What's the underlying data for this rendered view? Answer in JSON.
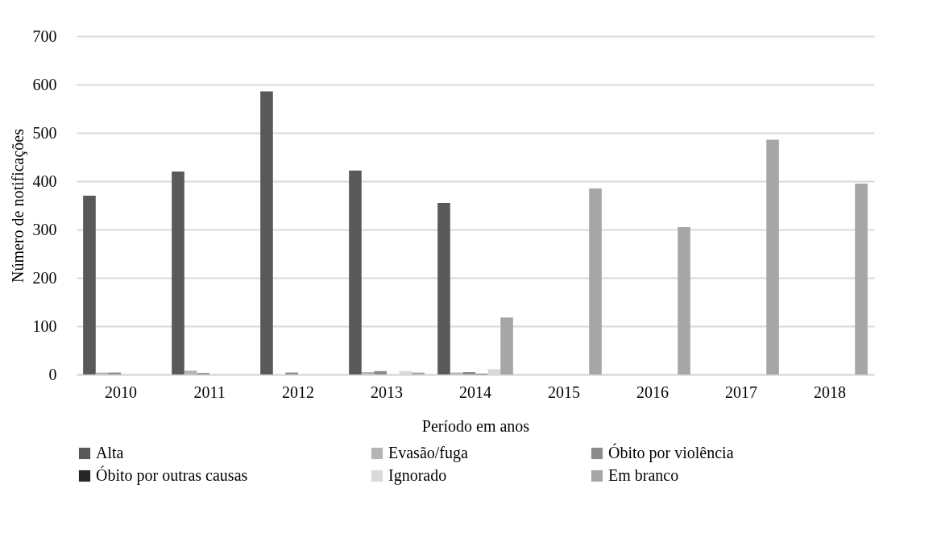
{
  "chart_data": {
    "type": "bar",
    "xlabel": "Período  em anos",
    "ylabel": "Número de notificações",
    "categories": [
      "2010",
      "2011",
      "2012",
      "2013",
      "2014",
      "2015",
      "2016",
      "2017",
      "2018"
    ],
    "series": [
      {
        "name": "Alta",
        "color": "#595959",
        "values": [
          370,
          420,
          586,
          422,
          355,
          null,
          null,
          null,
          null
        ]
      },
      {
        "name": "Evasão/fuga",
        "color": "#b4b4b4",
        "values": [
          4,
          8,
          null,
          5,
          4,
          null,
          null,
          null,
          null
        ]
      },
      {
        "name": "Óbito por violência",
        "color": "#8c8c8c",
        "values": [
          4,
          3,
          4,
          7,
          5,
          null,
          null,
          null,
          null
        ]
      },
      {
        "name": "Óbito por outras causas",
        "color": "#262626",
        "values": [
          0,
          0,
          0,
          0,
          1,
          null,
          null,
          null,
          null
        ]
      },
      {
        "name": "Ignorado",
        "color": "#d9d9d9",
        "values": [
          0,
          0,
          null,
          7,
          11,
          null,
          null,
          null,
          null
        ]
      },
      {
        "name": "Em branco",
        "color": "#a6a6a6",
        "values": [
          0,
          0,
          0,
          4,
          118,
          385,
          305,
          486,
          395
        ]
      }
    ],
    "ylim": [
      0,
      700
    ],
    "yticks": [
      0,
      100,
      200,
      300,
      400,
      500,
      600,
      700
    ],
    "grid": "y",
    "legend": "bottom"
  }
}
